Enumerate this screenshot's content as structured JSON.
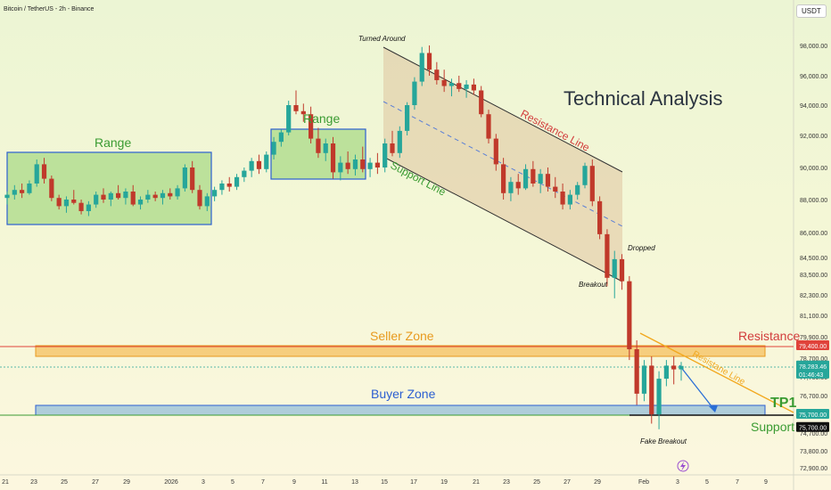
{
  "header": {
    "symbol": "Bitcoin / TetherUS - 2h - Binance",
    "currency_button": "USDT"
  },
  "colors": {
    "up": "#26a69a",
    "down": "#c0392b",
    "range_fill": "#8fcf6c",
    "range_border": "#2c5fd1",
    "range_label": "#3a9b32",
    "seller_zone": "#f5b340",
    "buyer_zone": "#8fbad8",
    "channel": "#d9b58e",
    "resistance_text": "#d23c3c",
    "support_text": "#3a9b32"
  },
  "chart_data": {
    "type": "candlestick",
    "title": "Technical Analysis",
    "x_ticks": [
      "21",
      "23",
      "25",
      "27",
      "29",
      "2026",
      "3",
      "5",
      "7",
      "9",
      "11",
      "13",
      "15",
      "17",
      "19",
      "21",
      "23",
      "25",
      "27",
      "29",
      "Feb",
      "3",
      "5",
      "7",
      "9"
    ],
    "y_ticks": [
      98000,
      96000,
      94000,
      92000,
      90000,
      88000,
      86000,
      84500,
      83500,
      82300,
      81100,
      79900,
      78700,
      77700,
      76700,
      75700,
      74700,
      73800,
      72900
    ],
    "ylim": [
      72500,
      99500
    ],
    "series": [
      {
        "values": [
          [
            88100,
            88500,
            87700,
            88300
          ],
          [
            88300,
            88900,
            88000,
            88600
          ],
          [
            88600,
            89000,
            88100,
            88400
          ],
          [
            88400,
            89200,
            88300,
            89000
          ],
          [
            89000,
            90500,
            88800,
            90200
          ],
          [
            90200,
            90600,
            89000,
            89300
          ],
          [
            89300,
            89500,
            87900,
            88100
          ],
          [
            88100,
            88300,
            87400,
            87600
          ],
          [
            87600,
            88200,
            87200,
            88000
          ],
          [
            88000,
            88600,
            87700,
            87800
          ],
          [
            87800,
            88000,
            87100,
            87300
          ],
          [
            87300,
            87900,
            87000,
            87700
          ],
          [
            87700,
            88500,
            87500,
            88300
          ],
          [
            88300,
            88700,
            87800,
            88000
          ],
          [
            88000,
            88500,
            87600,
            88400
          ],
          [
            88400,
            88900,
            88000,
            88100
          ],
          [
            88100,
            88700,
            87700,
            88500
          ],
          [
            88500,
            88900,
            87600,
            87700
          ],
          [
            87700,
            88200,
            87400,
            88000
          ],
          [
            88000,
            88600,
            87800,
            88300
          ],
          [
            88300,
            88500,
            87900,
            88100
          ],
          [
            88100,
            88600,
            87700,
            88400
          ],
          [
            88400,
            88700,
            88000,
            88200
          ],
          [
            88200,
            88900,
            88000,
            88700
          ],
          [
            88700,
            90200,
            88500,
            90000
          ],
          [
            90000,
            90400,
            88400,
            88600
          ],
          [
            88600,
            88900,
            87400,
            87600
          ],
          [
            87600,
            88400,
            87300,
            88200
          ],
          [
            88200,
            88800,
            87900,
            88600
          ],
          [
            88600,
            89200,
            88300,
            89000
          ],
          [
            89000,
            89400,
            88500,
            88800
          ],
          [
            88800,
            89600,
            88600,
            89400
          ],
          [
            89400,
            90000,
            89100,
            89800
          ],
          [
            89800,
            90600,
            89400,
            90400
          ],
          [
            90400,
            90800,
            89600,
            89900
          ],
          [
            89900,
            91000,
            89700,
            90800
          ],
          [
            90800,
            91900,
            90500,
            91600
          ],
          [
            91600,
            92400,
            91300,
            92200
          ],
          [
            92200,
            94300,
            92000,
            94000
          ],
          [
            94000,
            95000,
            93400,
            93600
          ],
          [
            93600,
            94100,
            92900,
            93400
          ],
          [
            93400,
            93900,
            91500,
            91800
          ],
          [
            91800,
            92500,
            90600,
            90900
          ],
          [
            90900,
            91800,
            90400,
            91500
          ],
          [
            91500,
            91900,
            89300,
            89700
          ],
          [
            89700,
            90700,
            89200,
            90300
          ],
          [
            90300,
            91000,
            89600,
            89900
          ],
          [
            89900,
            90800,
            89500,
            90500
          ],
          [
            90500,
            91300,
            89700,
            89900
          ],
          [
            89900,
            90600,
            89400,
            90300
          ],
          [
            90300,
            90900,
            89600,
            90000
          ],
          [
            90000,
            91800,
            89700,
            91500
          ],
          [
            91500,
            92300,
            90700,
            90900
          ],
          [
            90900,
            92600,
            90600,
            92300
          ],
          [
            92300,
            94200,
            92000,
            94000
          ],
          [
            94000,
            95900,
            93700,
            95600
          ],
          [
            95600,
            97900,
            95300,
            97500
          ],
          [
            97500,
            98000,
            96000,
            96400
          ],
          [
            96400,
            96900,
            95400,
            95700
          ],
          [
            95700,
            96400,
            94900,
            95300
          ],
          [
            95300,
            95800,
            94600,
            95500
          ],
          [
            95500,
            96000,
            94900,
            95100
          ],
          [
            95100,
            95700,
            94500,
            95400
          ],
          [
            95400,
            95800,
            94700,
            95000
          ],
          [
            95000,
            95300,
            93200,
            93400
          ],
          [
            93400,
            93700,
            91500,
            91800
          ],
          [
            91800,
            92100,
            89800,
            90200
          ],
          [
            90200,
            90600,
            88000,
            88400
          ],
          [
            88400,
            89400,
            87900,
            89100
          ],
          [
            89100,
            89600,
            88300,
            88700
          ],
          [
            88700,
            90200,
            88600,
            89900
          ],
          [
            89900,
            90400,
            88800,
            89000
          ],
          [
            89000,
            89900,
            88400,
            89600
          ],
          [
            89600,
            90000,
            88500,
            88800
          ],
          [
            88800,
            89400,
            88100,
            88500
          ],
          [
            88500,
            89000,
            87400,
            87700
          ],
          [
            87700,
            88600,
            87400,
            88300
          ],
          [
            88300,
            89100,
            88000,
            88900
          ],
          [
            88900,
            90300,
            88700,
            90100
          ],
          [
            90100,
            90500,
            87600,
            87900
          ],
          [
            87900,
            88200,
            85600,
            85900
          ],
          [
            85900,
            86200,
            82800,
            83300
          ],
          [
            83300,
            84900,
            82100,
            84400
          ],
          [
            84400,
            84700,
            82600,
            83100
          ],
          [
            83100,
            83400,
            78600,
            79200
          ],
          [
            79200,
            79700,
            76200,
            76800
          ],
          [
            76800,
            78600,
            76400,
            78300
          ],
          [
            78300,
            78800,
            75200,
            75700
          ],
          [
            75700,
            78000,
            74900,
            77600
          ],
          [
            77600,
            78600,
            77200,
            78300
          ],
          [
            78300,
            78800,
            77300,
            78100
          ],
          [
            78100,
            78500,
            77500,
            78283
          ]
        ]
      }
    ],
    "zones": [
      {
        "name": "Seller Zone",
        "from": 78700,
        "to": 79400
      },
      {
        "name": "Buyer Zone",
        "from": 75700,
        "to": 76050
      }
    ],
    "price_labels": [
      {
        "label": "79,400.00",
        "value": 79400,
        "color": "#e0433b"
      },
      {
        "label": "78,283.46",
        "value": 78283,
        "color": "#26a69a"
      },
      {
        "label": "01:46:43",
        "value": 77850,
        "color": "#26a69a"
      },
      {
        "label": "75,700.00",
        "value": 75700,
        "color": "#26a69a"
      },
      {
        "label": "75,700.00",
        "value": 75000,
        "color": "#111111"
      }
    ],
    "annotations": {
      "turned_around": "Turned Around",
      "range_1": "Range",
      "range_2": "Range",
      "resistance_line": "Resistance Line",
      "support_line": "Support Line",
      "dropped": "Dropped",
      "breakout": "Breakout",
      "seller_zone": "Seller Zone",
      "buyer_zone": "Buyer Zone",
      "resistance": "Resistance",
      "resistance_line_2": "Resistane Line",
      "tp1": "TP1",
      "support": "Support",
      "fake_breakout": "Fake Breakout"
    }
  }
}
